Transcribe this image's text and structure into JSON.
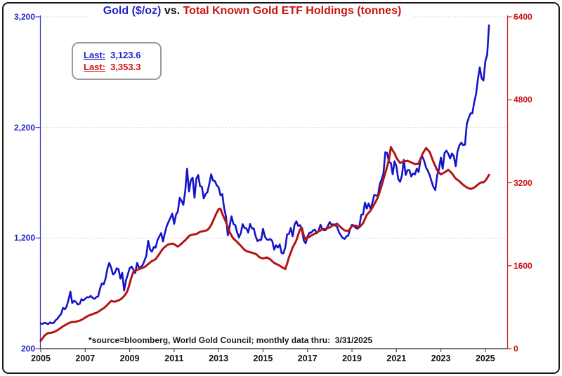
{
  "title": {
    "gold": "Gold ($/oz)",
    "separator": "vs.",
    "etf": "Total Known Gold ETF Holdings (tonnes)"
  },
  "legend": {
    "items": [
      {
        "label": "Last:",
        "value": "3,123.6",
        "series": "Gold ($/oz)"
      },
      {
        "label": "Last:",
        "value": "3,353.3",
        "series": "Total Known Gold ETF Holdings (tonnes)"
      }
    ]
  },
  "source_note": "*source=bloomberg, World Gold Council; monthly data thru:  3/31/2025",
  "colors": {
    "gold_line": "#1414C8",
    "etf_line": "#B51414",
    "gold_text": "#2222CC",
    "etf_text": "#CC1111",
    "grid": "#C9C9C9",
    "x_axis": "#4A4A4A",
    "left_axis": "#3B3BD0",
    "right_axis": "#CC2222",
    "legend_border": "#999999"
  },
  "chart_data": {
    "type": "line",
    "title": "Gold ($/oz) vs. Total Known Gold ETF Holdings (tonnes)",
    "frequency": "monthly",
    "x_axis": {
      "range": [
        2005,
        2026
      ],
      "ticks": [
        {
          "label": "2005",
          "value": 2005
        },
        {
          "label": "2007",
          "value": 2007
        },
        {
          "label": "2009",
          "value": 2009
        },
        {
          "label": "2011",
          "value": 2011
        },
        {
          "label": "2013",
          "value": 2013
        },
        {
          "label": "2015",
          "value": 2015
        },
        {
          "label": "2017",
          "value": 2017
        },
        {
          "label": "2019",
          "value": 2019
        },
        {
          "label": "2021",
          "value": 2021
        },
        {
          "label": "2023",
          "value": 2023
        },
        {
          "label": "2025",
          "value": 2025
        }
      ]
    },
    "left_axis": {
      "name": "Gold ($/oz)",
      "range": [
        200,
        3200
      ],
      "ticks": [
        {
          "label": "3,200",
          "value": 3200
        },
        {
          "label": "2,200",
          "value": 2200
        },
        {
          "label": "1,200",
          "value": 1200
        },
        {
          "label": "200",
          "value": 200
        }
      ]
    },
    "right_axis": {
      "name": "Total Known Gold ETF Holdings (tonnes)",
      "range": [
        0,
        6400
      ],
      "ticks": [
        {
          "label": "6400",
          "value": 6400
        },
        {
          "label": "4800",
          "value": 4800
        },
        {
          "label": "3200",
          "value": 3200
        },
        {
          "label": "1600",
          "value": 1600
        },
        {
          "label": "0",
          "value": 0
        }
      ]
    },
    "gridlines_at_left_values": [
      3200,
      2200,
      1200
    ],
    "legend_position": "top-left",
    "series": [
      {
        "name": "Gold ($/oz)",
        "axis": "left",
        "color": "#1414C8",
        "last": 3123.6,
        "start_year": 2005,
        "start_month": 1,
        "values": [
          428,
          423,
          434,
          429,
          422,
          437,
          429,
          433,
          456,
          470,
          495,
          513,
          568,
          556,
          582,
          644,
          715,
          613,
          633,
          623,
          599,
          604,
          647,
          636,
          651,
          665,
          663,
          677,
          659,
          651,
          665,
          673,
          743,
          790,
          783,
          834,
          923,
          975,
          933,
          871,
          885,
          926,
          918,
          833,
          885,
          725,
          816,
          870,
          927,
          942,
          916,
          883,
          975,
          934,
          939,
          955,
          996,
          1040,
          1175,
          1096,
          1078,
          1118,
          1113,
          1179,
          1215,
          1244,
          1169,
          1246,
          1307,
          1346,
          1383,
          1421,
          1327,
          1411,
          1439,
          1564,
          1536,
          1500,
          1628,
          1826,
          1620,
          1722,
          1746,
          1564,
          1737,
          1770,
          1668,
          1664,
          1558,
          1598,
          1615,
          1692,
          1776,
          1720,
          1715,
          1676,
          1660,
          1588,
          1598,
          1469,
          1394,
          1224,
          1313,
          1396,
          1327,
          1316,
          1253,
          1205,
          1244,
          1326,
          1291,
          1288,
          1250,
          1327,
          1285,
          1287,
          1216,
          1173,
          1182,
          1184,
          1283,
          1213,
          1187,
          1184,
          1191,
          1172,
          1095,
          1135,
          1114,
          1142,
          1065,
          1061,
          1116,
          1234,
          1237,
          1290,
          1215,
          1322,
          1351,
          1309,
          1316,
          1273,
          1178,
          1152,
          1212,
          1248,
          1249,
          1268,
          1275,
          1242,
          1267,
          1321,
          1280,
          1271,
          1275,
          1309,
          1345,
          1318,
          1325,
          1315,
          1301,
          1253,
          1224,
          1201,
          1192,
          1215,
          1222,
          1282,
          1321,
          1313,
          1292,
          1284,
          1306,
          1410,
          1414,
          1520,
          1466,
          1513,
          1464,
          1517,
          1589,
          1586,
          1577,
          1687,
          1730,
          1781,
          1976,
          1968,
          1886,
          1879,
          1777,
          1895,
          1848,
          1734,
          1708,
          1768,
          1907,
          1770,
          1814,
          1814,
          1757,
          1783,
          1775,
          1829,
          1797,
          1909,
          1937,
          1897,
          1837,
          1807,
          1766,
          1711,
          1661,
          1634,
          1769,
          1824,
          1928,
          1827,
          1969,
          1990,
          1963,
          1919,
          1965,
          1940,
          1849,
          1984,
          2036,
          2063,
          2040,
          2044,
          2230,
          2286,
          2327,
          2327,
          2426,
          2503,
          2635,
          2744,
          2643,
          2625,
          2798,
          2858,
          3123.6
        ]
      },
      {
        "name": "Total Known Gold ETF Holdings (tonnes)",
        "axis": "right",
        "color": "#B51414",
        "last": 3353.3,
        "start_year": 2005,
        "start_month": 1,
        "values": [
          150,
          200,
          250,
          280,
          300,
          305,
          310,
          320,
          335,
          355,
          380,
          405,
          430,
          450,
          470,
          490,
          505,
          515,
          515,
          520,
          530,
          540,
          555,
          575,
          600,
          620,
          640,
          655,
          665,
          680,
          690,
          710,
          735,
          760,
          780,
          810,
          845,
          885,
          920,
          910,
          905,
          920,
          930,
          950,
          975,
          1015,
          1060,
          1130,
          1255,
          1380,
          1480,
          1505,
          1520,
          1535,
          1545,
          1560,
          1575,
          1600,
          1630,
          1660,
          1690,
          1705,
          1725,
          1775,
          1825,
          1880,
          1930,
          1960,
          1990,
          2010,
          2020,
          2025,
          2015,
          1990,
          1970,
          1995,
          2025,
          2060,
          2090,
          2130,
          2170,
          2190,
          2200,
          2205,
          2210,
          2230,
          2255,
          2260,
          2265,
          2275,
          2290,
          2330,
          2385,
          2460,
          2545,
          2620,
          2690,
          2700,
          2605,
          2520,
          2440,
          2340,
          2245,
          2180,
          2125,
          2090,
          2060,
          2020,
          1985,
          1945,
          1905,
          1885,
          1870,
          1860,
          1850,
          1840,
          1830,
          1800,
          1765,
          1750,
          1740,
          1750,
          1760,
          1740,
          1720,
          1685,
          1655,
          1635,
          1620,
          1600,
          1575,
          1555,
          1535,
          1640,
          1760,
          1855,
          1950,
          2020,
          2090,
          2200,
          2300,
          2330,
          2180,
          2110,
          2140,
          2160,
          2180,
          2200,
          2220,
          2240,
          2260,
          2280,
          2300,
          2310,
          2310,
          2325,
          2340,
          2360,
          2380,
          2395,
          2410,
          2375,
          2340,
          2310,
          2280,
          2270,
          2270,
          2315,
          2360,
          2370,
          2370,
          2355,
          2340,
          2380,
          2420,
          2500,
          2580,
          2620,
          2660,
          2720,
          2780,
          2850,
          2920,
          3030,
          3140,
          3265,
          3390,
          3515,
          3640,
          3890,
          3820,
          3770,
          3680,
          3630,
          3580,
          3595,
          3610,
          3618,
          3625,
          3608,
          3590,
          3575,
          3560,
          3565,
          3570,
          3660,
          3750,
          3810,
          3870,
          3830,
          3790,
          3695,
          3600,
          3520,
          3440,
          3400,
          3360,
          3380,
          3400,
          3425,
          3450,
          3415,
          3380,
          3330,
          3280,
          3255,
          3230,
          3195,
          3160,
          3135,
          3110,
          3095,
          3080,
          3092,
          3105,
          3135,
          3165,
          3190,
          3210,
          3205,
          3240,
          3290,
          3353.3
        ]
      }
    ]
  }
}
